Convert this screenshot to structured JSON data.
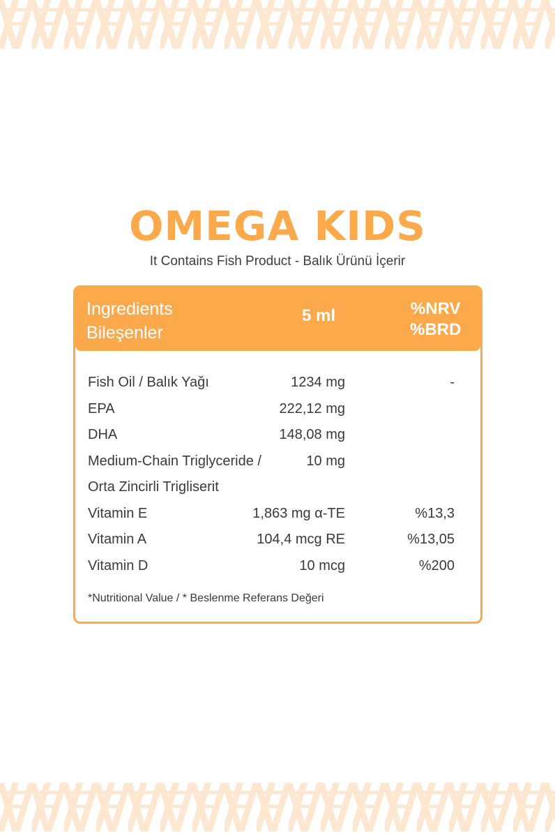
{
  "product": {
    "title": "OMEGA KIDS",
    "subtitle": "It Contains Fish Product - Balık Ürünü İçerir"
  },
  "table": {
    "header": {
      "ingredients_en": "Ingredients",
      "ingredients_tr": "Bileşenler",
      "amount": "5 ml",
      "nrv": "%NRV",
      "brd": "%BRD"
    },
    "rows": [
      {
        "name": "Fish Oil / Balık Yağı",
        "amount": "1234 mg",
        "percent": "-"
      },
      {
        "name": "EPA",
        "amount": "222,12 mg",
        "percent": ""
      },
      {
        "name": "DHA",
        "amount": "148,08 mg",
        "percent": ""
      },
      {
        "name": "Medium-Chain Triglyceride /",
        "amount": "10 mg",
        "percent": ""
      },
      {
        "name": "Orta Zincirli Trigliserit",
        "amount": "",
        "percent": ""
      },
      {
        "name": "Vitamin E",
        "amount": "1,863 mg α-TE",
        "percent": "%13,3"
      },
      {
        "name": "Vitamin A",
        "amount": "104,4 mcg RE",
        "percent": "%13,05"
      },
      {
        "name": "Vitamin D",
        "amount": "10 mcg",
        "percent": "%200"
      }
    ],
    "footnote": "*Nutritional Value / * Beslenme Referans Değeri"
  },
  "colors": {
    "accent": "#fba94b",
    "pattern": "#fde7d0",
    "text": "#3a3a3a"
  }
}
